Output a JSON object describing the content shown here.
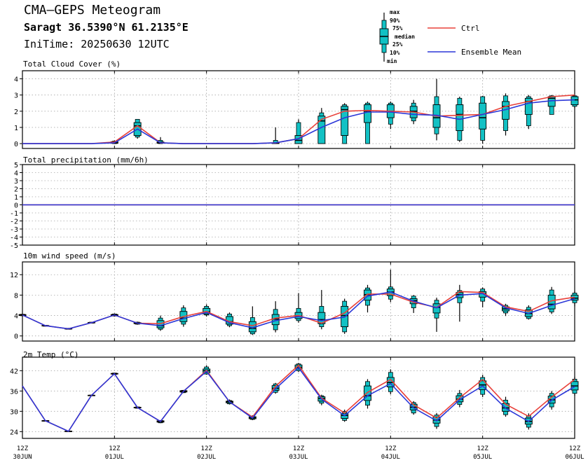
{
  "header": {
    "title": "CMA–GEPS Meteogram",
    "location": "Saragt 36.5390°N 61.2135°E",
    "init_time": "IniTime: 20250630 12UTC"
  },
  "legend": {
    "box_labels": [
      "max",
      "90%",
      "75%",
      "median",
      "25%",
      "10%",
      "min"
    ],
    "ctrl": "Ctrl",
    "mean": "Ensemble Mean"
  },
  "colors": {
    "ctrl": "#e8403a",
    "mean": "#2b37d8",
    "box": "#12c1c4"
  },
  "x_axis": {
    "ticks": [
      {
        "t": 0,
        "line1": "12Z",
        "line2": "30JUN"
      },
      {
        "t": 24,
        "line1": "12Z",
        "line2": "01JUL"
      },
      {
        "t": 48,
        "line1": "12Z",
        "line2": "02JUL"
      },
      {
        "t": 72,
        "line1": "12Z",
        "line2": "03JUL"
      },
      {
        "t": 96,
        "line1": "12Z",
        "line2": "04JUL"
      },
      {
        "t": 120,
        "line1": "12Z",
        "line2": "05JUL"
      },
      {
        "t": 144,
        "line1": "12Z",
        "line2": "06JUL"
      }
    ]
  },
  "chart_data": [
    {
      "type": "box",
      "title": "Total Cloud Cover (%)",
      "ylim": [
        -0.3,
        4.5
      ],
      "yticks": [
        0,
        1,
        2,
        3,
        4
      ],
      "x": [
        0,
        6,
        12,
        18,
        24,
        30,
        36,
        42,
        48,
        54,
        60,
        66,
        72,
        78,
        84,
        90,
        96,
        102,
        108,
        114,
        120,
        126,
        132,
        138,
        144
      ],
      "ctrl": [
        0,
        0,
        0,
        0,
        0.1,
        1.1,
        0.05,
        0,
        0,
        0,
        0,
        0.05,
        0.3,
        1.5,
        2.0,
        2.05,
        2.0,
        1.95,
        1.7,
        1.75,
        1.8,
        2.3,
        2.6,
        2.9,
        3.0
      ],
      "mean": [
        0,
        0,
        0,
        0,
        0.05,
        0.9,
        0.05,
        0,
        0,
        0,
        0,
        0.05,
        0.3,
        1.0,
        1.6,
        1.95,
        1.95,
        1.8,
        1.75,
        1.5,
        1.8,
        2.1,
        2.5,
        2.65,
        2.7
      ],
      "boxes": [
        {
          "x": 24,
          "min": 0,
          "p10": 0,
          "p25": 0.02,
          "med": 0.05,
          "p75": 0.12,
          "p90": 0.15,
          "max": 0.2
        },
        {
          "x": 30,
          "min": 0.3,
          "p10": 0.4,
          "p25": 0.5,
          "med": 1.1,
          "p75": 1.3,
          "p90": 1.5,
          "max": 1.5
        },
        {
          "x": 36,
          "min": 0,
          "p10": 0,
          "p25": 0.02,
          "med": 0.05,
          "p75": 0.1,
          "p90": 0.2,
          "max": 0.4
        },
        {
          "x": 66,
          "min": 0,
          "p10": 0,
          "p25": 0,
          "med": 0.02,
          "p75": 0.05,
          "p90": 0.2,
          "max": 1.0
        },
        {
          "x": 72,
          "min": 0,
          "p10": 0,
          "p25": 0,
          "med": 0.2,
          "p75": 0.5,
          "p90": 1.3,
          "max": 1.5
        },
        {
          "x": 78,
          "min": 0,
          "p10": 0,
          "p25": 0,
          "med": 1.4,
          "p75": 1.7,
          "p90": 1.9,
          "max": 2.2
        },
        {
          "x": 84,
          "min": 0,
          "p10": 0,
          "p25": 0.5,
          "med": 2.1,
          "p75": 2.3,
          "p90": 2.4,
          "max": 2.5
        },
        {
          "x": 90,
          "min": 0,
          "p10": 0,
          "p25": 1.3,
          "med": 2.0,
          "p75": 2.4,
          "p90": 2.5,
          "max": 2.6
        },
        {
          "x": 96,
          "min": 0.9,
          "p10": 1.2,
          "p25": 1.6,
          "med": 2.0,
          "p75": 2.4,
          "p90": 2.5,
          "max": 2.6
        },
        {
          "x": 102,
          "min": 1.2,
          "p10": 1.4,
          "p25": 1.6,
          "med": 2.0,
          "p75": 2.3,
          "p90": 2.5,
          "max": 2.7
        },
        {
          "x": 108,
          "min": 0.2,
          "p10": 0.6,
          "p25": 1.0,
          "med": 1.6,
          "p75": 2.4,
          "p90": 2.9,
          "max": 4.0
        },
        {
          "x": 114,
          "min": 0.1,
          "p10": 0.2,
          "p25": 0.8,
          "med": 1.8,
          "p75": 2.4,
          "p90": 2.8,
          "max": 2.9
        },
        {
          "x": 120,
          "min": 0,
          "p10": 0.2,
          "p25": 0.9,
          "med": 1.6,
          "p75": 2.5,
          "p90": 2.9,
          "max": 2.95
        },
        {
          "x": 126,
          "min": 0.5,
          "p10": 0.8,
          "p25": 1.5,
          "med": 2.3,
          "p75": 2.6,
          "p90": 2.95,
          "max": 3.1
        },
        {
          "x": 132,
          "min": 0.9,
          "p10": 1.1,
          "p25": 1.8,
          "med": 2.6,
          "p75": 2.8,
          "p90": 2.9,
          "max": 3.0
        },
        {
          "x": 138,
          "min": 1.8,
          "p10": 1.8,
          "p25": 2.3,
          "med": 2.8,
          "p75": 2.9,
          "p90": 2.95,
          "max": 3.0
        },
        {
          "x": 144,
          "min": 2.2,
          "p10": 2.3,
          "p25": 2.4,
          "med": 2.7,
          "p75": 2.9,
          "p90": 2.95,
          "max": 3.0
        }
      ]
    },
    {
      "type": "line",
      "title": "Total precipitation (mm/6h)",
      "ylim": [
        -5,
        5
      ],
      "yticks": [
        -5,
        -4,
        -3,
        -2,
        -1,
        0,
        1,
        2,
        3,
        4,
        5
      ],
      "x": [
        0,
        144
      ],
      "ctrl": [
        0,
        0
      ],
      "mean": [
        0,
        0
      ],
      "boxes": []
    },
    {
      "type": "box",
      "title": "10m wind speed (m/s)",
      "ylim": [
        -1,
        14.5
      ],
      "yticks": [
        0,
        4,
        8,
        12
      ],
      "x": [
        0,
        6,
        12,
        18,
        24,
        30,
        36,
        42,
        48,
        54,
        60,
        66,
        72,
        78,
        84,
        90,
        96,
        102,
        108,
        114,
        120,
        126,
        132,
        138,
        144
      ],
      "ctrl": [
        4.1,
        2.0,
        1.4,
        2.6,
        4.1,
        2.5,
        2.4,
        3.8,
        4.8,
        2.8,
        2.0,
        3.5,
        4.0,
        2.5,
        4.5,
        8.2,
        8.2,
        6.6,
        5.6,
        8.7,
        8.5,
        5.7,
        4.8,
        6.9,
        7.6
      ],
      "mean": [
        4.1,
        2.0,
        1.4,
        2.6,
        4.1,
        2.5,
        2.0,
        3.4,
        4.6,
        2.6,
        1.6,
        3.0,
        3.8,
        3.0,
        3.7,
        7.8,
        8.6,
        6.8,
        5.5,
        8.0,
        8.3,
        5.5,
        4.4,
        6.0,
        7.3
      ],
      "boxes": [
        {
          "x": 0,
          "min": 3.9,
          "p10": 3.95,
          "p25": 4.0,
          "med": 4.1,
          "p75": 4.2,
          "p90": 4.25,
          "max": 4.3
        },
        {
          "x": 6,
          "min": 1.85,
          "p10": 1.9,
          "p25": 1.95,
          "med": 2.0,
          "p75": 2.05,
          "p90": 2.1,
          "max": 2.15
        },
        {
          "x": 12,
          "min": 1.25,
          "p10": 1.3,
          "p25": 1.35,
          "med": 1.4,
          "p75": 1.45,
          "p90": 1.5,
          "max": 1.55
        },
        {
          "x": 18,
          "min": 2.45,
          "p10": 2.5,
          "p25": 2.55,
          "med": 2.6,
          "p75": 2.65,
          "p90": 2.7,
          "max": 2.75
        },
        {
          "x": 24,
          "min": 3.8,
          "p10": 3.9,
          "p25": 4.0,
          "med": 4.1,
          "p75": 4.2,
          "p90": 4.3,
          "max": 4.4
        },
        {
          "x": 30,
          "min": 2.2,
          "p10": 2.3,
          "p25": 2.4,
          "med": 2.5,
          "p75": 2.6,
          "p90": 2.7,
          "max": 2.8
        },
        {
          "x": 36,
          "min": 1.0,
          "p10": 1.3,
          "p25": 1.6,
          "med": 2.0,
          "p75": 3.0,
          "p90": 3.5,
          "max": 4.0
        },
        {
          "x": 42,
          "min": 1.8,
          "p10": 2.3,
          "p25": 2.8,
          "med": 3.5,
          "p75": 4.8,
          "p90": 5.5,
          "max": 6.0
        },
        {
          "x": 48,
          "min": 3.8,
          "p10": 4.1,
          "p25": 4.3,
          "med": 4.7,
          "p75": 5.4,
          "p90": 5.8,
          "max": 6.2
        },
        {
          "x": 54,
          "min": 1.7,
          "p10": 2.0,
          "p25": 2.3,
          "med": 2.8,
          "p75": 3.8,
          "p90": 4.3,
          "max": 4.6
        },
        {
          "x": 60,
          "min": 0.2,
          "p10": 0.4,
          "p25": 0.8,
          "med": 1.5,
          "p75": 2.8,
          "p90": 3.6,
          "max": 5.8
        },
        {
          "x": 66,
          "min": 0.7,
          "p10": 1.2,
          "p25": 2.2,
          "med": 3.3,
          "p75": 4.2,
          "p90": 5.2,
          "max": 6.8
        },
        {
          "x": 72,
          "min": 2.6,
          "p10": 3.0,
          "p25": 3.4,
          "med": 3.9,
          "p75": 4.6,
          "p90": 5.4,
          "max": 8.4
        },
        {
          "x": 78,
          "min": 1.3,
          "p10": 1.8,
          "p25": 2.4,
          "med": 3.2,
          "p75": 4.6,
          "p90": 5.8,
          "max": 9.0
        },
        {
          "x": 84,
          "min": 0.4,
          "p10": 0.8,
          "p25": 1.8,
          "med": 4.0,
          "p75": 5.8,
          "p90": 6.8,
          "max": 7.3
        },
        {
          "x": 90,
          "min": 4.6,
          "p10": 6.0,
          "p25": 7.0,
          "med": 8.1,
          "p75": 9.0,
          "p90": 9.4,
          "max": 10.0
        },
        {
          "x": 96,
          "min": 6.6,
          "p10": 7.2,
          "p25": 7.9,
          "med": 8.6,
          "p75": 9.2,
          "p90": 9.6,
          "max": 13.0
        },
        {
          "x": 102,
          "min": 4.5,
          "p10": 5.5,
          "p25": 6.3,
          "med": 6.9,
          "p75": 7.3,
          "p90": 7.8,
          "max": 8.0
        },
        {
          "x": 108,
          "min": 0.8,
          "p10": 3.5,
          "p25": 4.5,
          "med": 5.6,
          "p75": 6.3,
          "p90": 7.0,
          "max": 7.5
        },
        {
          "x": 114,
          "min": 2.8,
          "p10": 6.5,
          "p25": 7.5,
          "med": 8.1,
          "p75": 8.5,
          "p90": 8.9,
          "max": 10.0
        },
        {
          "x": 120,
          "min": 5.6,
          "p10": 6.8,
          "p25": 7.6,
          "med": 8.3,
          "p75": 8.7,
          "p90": 9.2,
          "max": 9.5
        },
        {
          "x": 126,
          "min": 3.9,
          "p10": 4.5,
          "p25": 4.9,
          "med": 5.3,
          "p75": 5.7,
          "p90": 6.0,
          "max": 6.3
        },
        {
          "x": 132,
          "min": 3.2,
          "p10": 3.4,
          "p25": 3.8,
          "med": 4.4,
          "p75": 5.1,
          "p90": 5.6,
          "max": 6.0
        },
        {
          "x": 138,
          "min": 4.3,
          "p10": 4.7,
          "p25": 5.3,
          "med": 6.2,
          "p75": 8.0,
          "p90": 9.0,
          "max": 9.6
        },
        {
          "x": 144,
          "min": 5.8,
          "p10": 6.5,
          "p25": 7.0,
          "med": 7.4,
          "p75": 8.0,
          "p90": 8.4,
          "max": 8.8
        }
      ]
    },
    {
      "type": "box",
      "title": "2m Temp (°C)",
      "ylim": [
        22,
        46
      ],
      "yticks": [
        24,
        30,
        36,
        42
      ],
      "x": [
        0,
        6,
        12,
        18,
        24,
        30,
        36,
        42,
        48,
        54,
        60,
        66,
        72,
        78,
        84,
        90,
        96,
        102,
        108,
        114,
        120,
        126,
        132,
        138,
        144
      ],
      "ctrl": [
        37.5,
        27.2,
        24.1,
        34.7,
        41.1,
        31.1,
        27.0,
        35.9,
        42.1,
        32.8,
        28.3,
        37.4,
        43.6,
        33.9,
        29.5,
        35.6,
        39.4,
        31.9,
        28.0,
        34.0,
        39.4,
        32.1,
        28.5,
        34.2,
        39.4
      ],
      "mean": [
        37.5,
        27.2,
        24.1,
        34.7,
        41.1,
        31.1,
        27.0,
        35.9,
        41.8,
        32.8,
        28.0,
        36.7,
        42.9,
        33.6,
        28.7,
        34.6,
        38.2,
        31.0,
        27.2,
        33.4,
        37.5,
        30.9,
        27.0,
        33.3,
        37.3
      ],
      "boxes": [
        {
          "x": 6,
          "min": 27.0,
          "p10": 27.1,
          "p25": 27.15,
          "med": 27.2,
          "p75": 27.25,
          "p90": 27.3,
          "max": 27.4
        },
        {
          "x": 12,
          "min": 23.9,
          "p10": 24.0,
          "p25": 24.05,
          "med": 24.1,
          "p75": 24.15,
          "p90": 24.2,
          "max": 24.3
        },
        {
          "x": 18,
          "min": 34.5,
          "p10": 34.6,
          "p25": 34.65,
          "med": 34.7,
          "p75": 34.75,
          "p90": 34.8,
          "max": 34.9
        },
        {
          "x": 24,
          "min": 40.7,
          "p10": 40.9,
          "p25": 41.0,
          "med": 41.1,
          "p75": 41.2,
          "p90": 41.3,
          "max": 41.4
        },
        {
          "x": 30,
          "min": 30.8,
          "p10": 30.9,
          "p25": 31.0,
          "med": 31.1,
          "p75": 31.2,
          "p90": 31.3,
          "max": 31.4
        },
        {
          "x": 36,
          "min": 26.5,
          "p10": 26.6,
          "p25": 26.8,
          "med": 27.0,
          "p75": 27.2,
          "p90": 27.3,
          "max": 27.4
        },
        {
          "x": 42,
          "min": 35.4,
          "p10": 35.5,
          "p25": 35.7,
          "med": 35.9,
          "p75": 36.1,
          "p90": 36.2,
          "max": 36.3
        },
        {
          "x": 48,
          "min": 40.8,
          "p10": 41.0,
          "p25": 41.4,
          "med": 42.0,
          "p75": 42.5,
          "p90": 43.1,
          "max": 43.6
        },
        {
          "x": 54,
          "min": 32.0,
          "p10": 32.2,
          "p25": 32.5,
          "med": 32.8,
          "p75": 33.0,
          "p90": 33.2,
          "max": 33.5
        },
        {
          "x": 60,
          "min": 27.4,
          "p10": 27.6,
          "p25": 27.8,
          "med": 28.1,
          "p75": 28.4,
          "p90": 28.6,
          "max": 28.8
        },
        {
          "x": 66,
          "min": 35.2,
          "p10": 35.6,
          "p25": 36.2,
          "med": 36.8,
          "p75": 37.6,
          "p90": 38.1,
          "max": 38.4
        },
        {
          "x": 72,
          "min": 41.6,
          "p10": 42.0,
          "p25": 42.5,
          "med": 43.0,
          "p75": 43.7,
          "p90": 44.0,
          "max": 44.3
        },
        {
          "x": 78,
          "min": 31.8,
          "p10": 32.4,
          "p25": 33.0,
          "med": 33.8,
          "p75": 34.3,
          "p90": 34.6,
          "max": 34.9
        },
        {
          "x": 84,
          "min": 26.9,
          "p10": 27.3,
          "p25": 27.9,
          "med": 28.8,
          "p75": 29.4,
          "p90": 30.0,
          "max": 30.5
        },
        {
          "x": 90,
          "min": 30.8,
          "p10": 31.8,
          "p25": 33.2,
          "med": 34.6,
          "p75": 37.5,
          "p90": 38.8,
          "max": 39.5
        },
        {
          "x": 96,
          "min": 35.0,
          "p10": 35.8,
          "p25": 37.2,
          "med": 38.5,
          "p75": 40.0,
          "p90": 41.5,
          "max": 42.4
        },
        {
          "x": 102,
          "min": 29.0,
          "p10": 29.5,
          "p25": 30.4,
          "med": 31.2,
          "p75": 32.1,
          "p90": 32.6,
          "max": 33.0
        },
        {
          "x": 108,
          "min": 24.8,
          "p10": 25.5,
          "p25": 26.5,
          "med": 27.4,
          "p75": 28.3,
          "p90": 28.9,
          "max": 29.5
        },
        {
          "x": 114,
          "min": 31.2,
          "p10": 32.0,
          "p25": 32.8,
          "med": 33.6,
          "p75": 34.6,
          "p90": 35.3,
          "max": 36.3
        },
        {
          "x": 120,
          "min": 34.2,
          "p10": 35.0,
          "p25": 36.4,
          "med": 37.8,
          "p75": 39.0,
          "p90": 40.0,
          "max": 40.8
        },
        {
          "x": 126,
          "min": 28.4,
          "p10": 29.0,
          "p25": 30.0,
          "med": 31.0,
          "p75": 32.3,
          "p90": 33.3,
          "max": 34.3
        },
        {
          "x": 132,
          "min": 24.6,
          "p10": 25.3,
          "p25": 26.2,
          "med": 27.0,
          "p75": 28.0,
          "p90": 28.7,
          "max": 29.4
        },
        {
          "x": 138,
          "min": 30.5,
          "p10": 31.3,
          "p25": 32.4,
          "med": 33.4,
          "p75": 34.5,
          "p90": 35.3,
          "max": 36.0
        },
        {
          "x": 144,
          "min": 34.6,
          "p10": 35.3,
          "p25": 36.3,
          "med": 37.5,
          "p75": 38.8,
          "p90": 39.5,
          "max": 40.2
        }
      ]
    }
  ]
}
